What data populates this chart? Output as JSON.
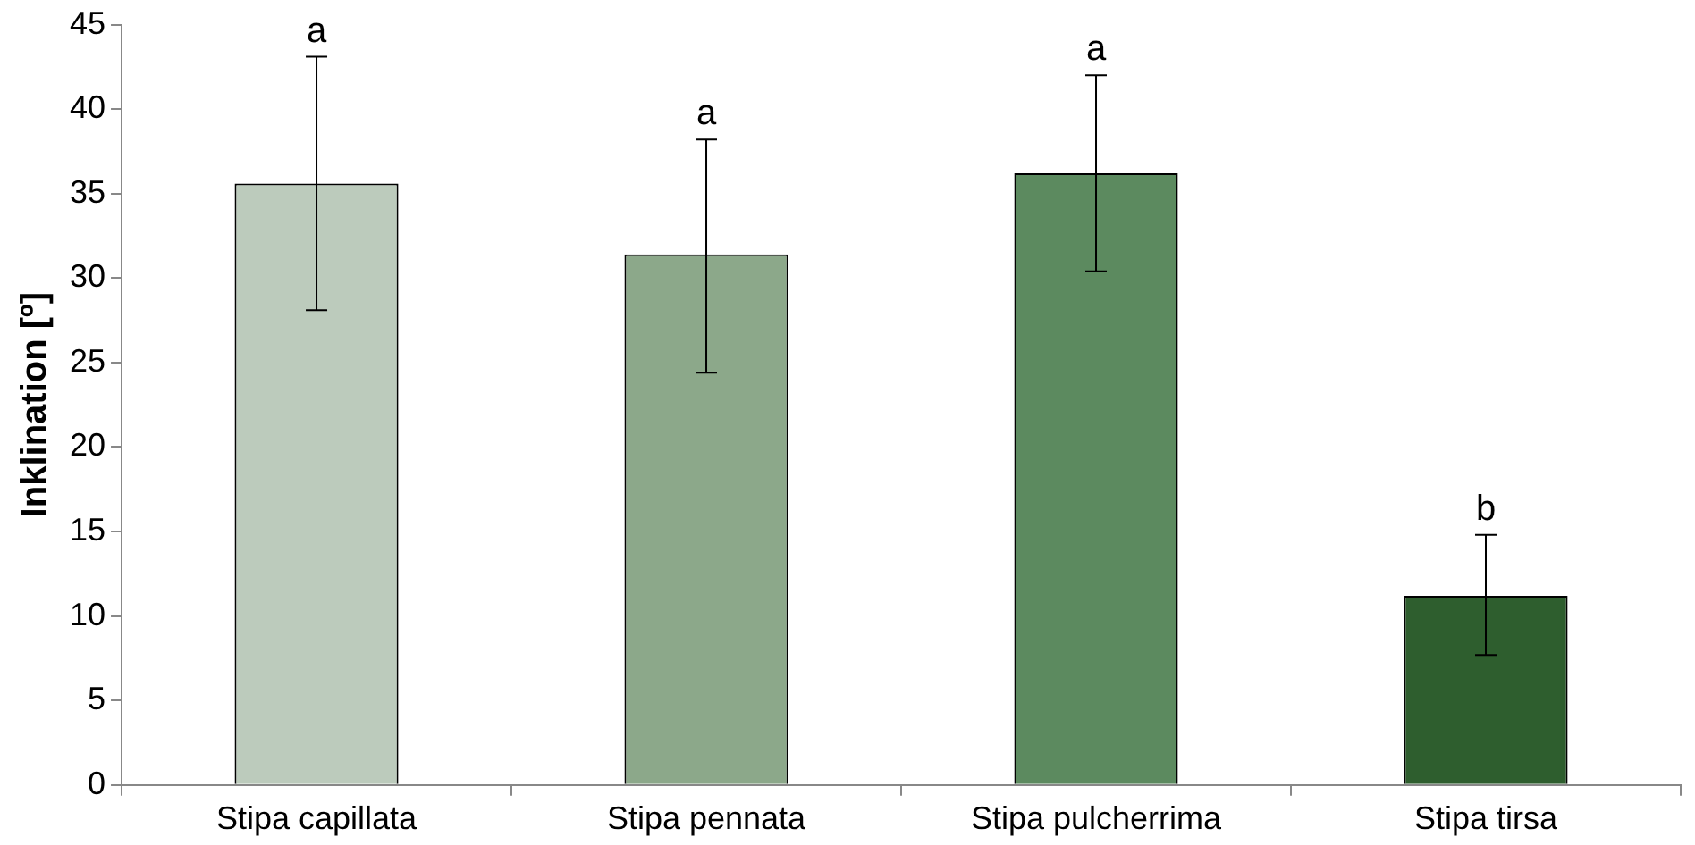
{
  "chart_data": {
    "type": "bar",
    "ylabel": "Inklination [º]",
    "categories": [
      "Stipa capillata",
      "Stipa pennata",
      "Stipa pulcherrima",
      "Stipa tirsa"
    ],
    "values": [
      35.6,
      31.4,
      36.2,
      11.2
    ],
    "colors": [
      "#bccbbc",
      "#8ca88a",
      "#5c8a5f",
      "#2e5e2e"
    ],
    "errors": [
      [
        28.1,
        43.1
      ],
      [
        24.4,
        38.2
      ],
      [
        30.4,
        42.0
      ],
      [
        7.7,
        14.8
      ]
    ],
    "ylim": [
      0,
      45
    ],
    "yticks": [
      0,
      5,
      10,
      15,
      20,
      25,
      30,
      35,
      40,
      45
    ],
    "grid": false,
    "legend": false,
    "annotations": [
      {
        "text": "a",
        "x": "Stipa capillata",
        "y": 43.1
      },
      {
        "text": "a",
        "x": "Stipa pennata",
        "y": 38.2
      },
      {
        "text": "a",
        "x": "Stipa pulcherrima",
        "y": 42.0
      },
      {
        "text": "b",
        "x": "Stipa tirsa",
        "y": 14.8
      }
    ]
  }
}
